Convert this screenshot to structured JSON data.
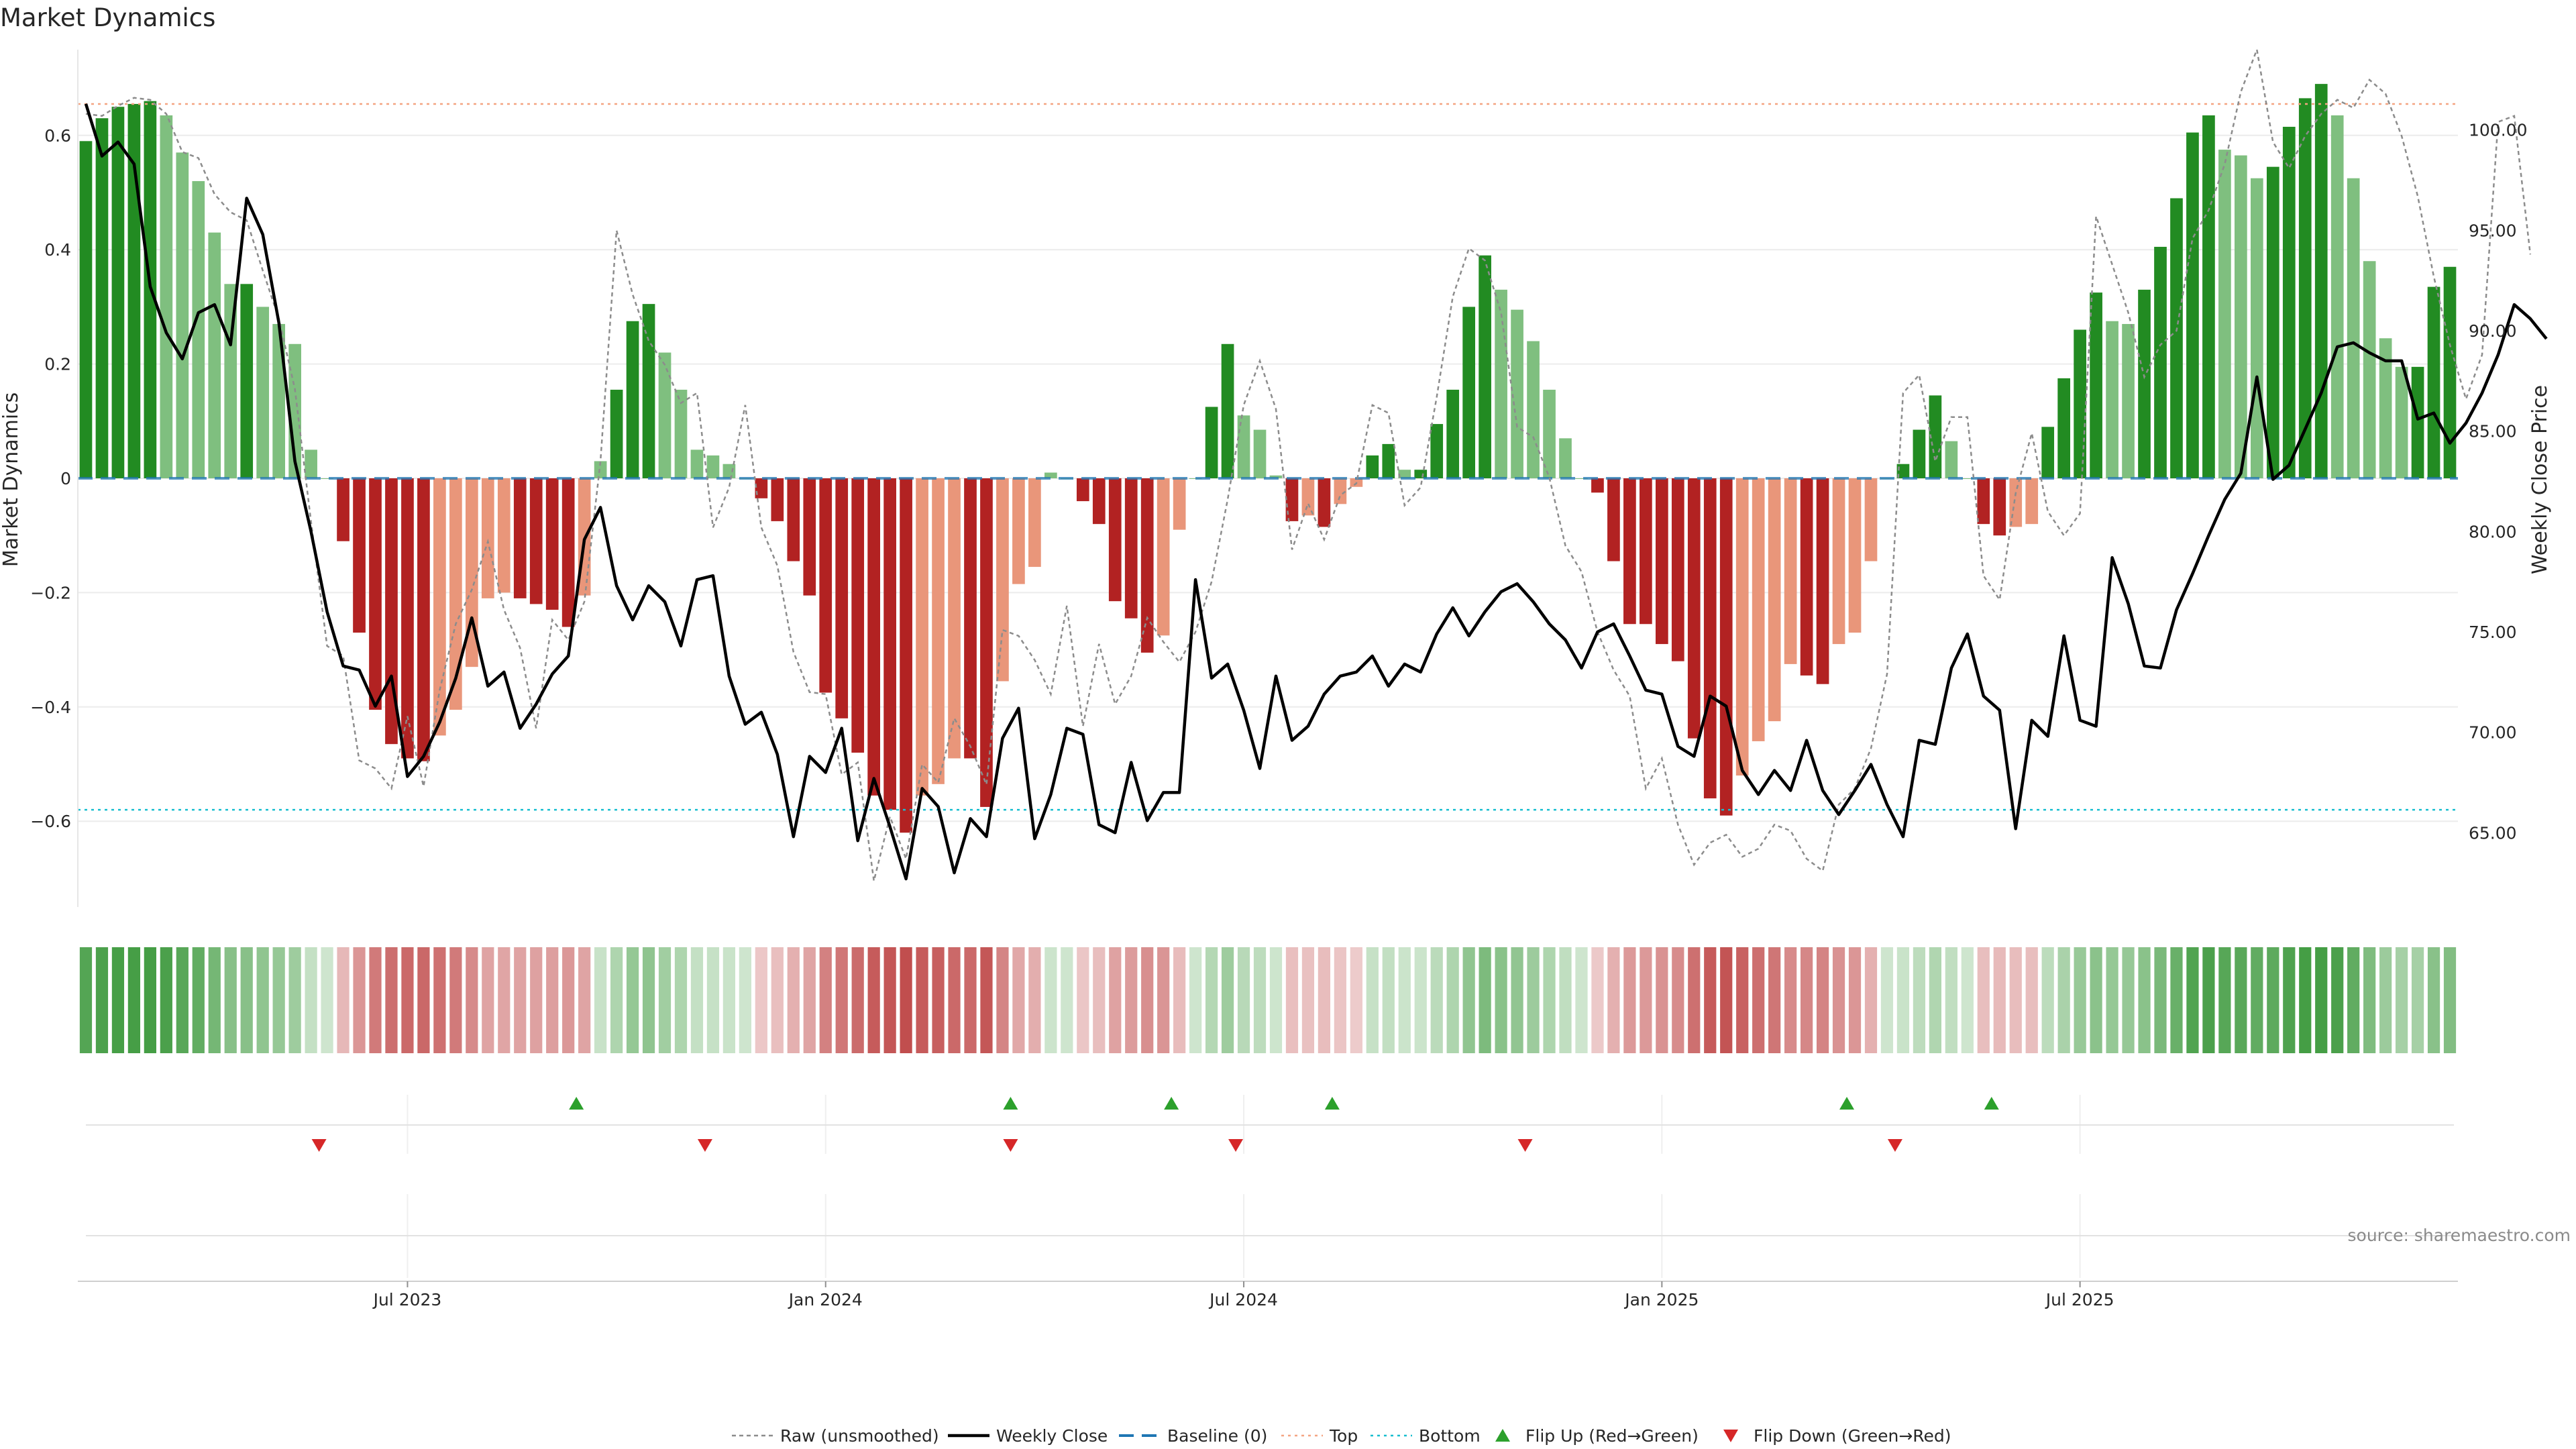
{
  "chart_data": {
    "type": "bar",
    "title": "Market Dynamics",
    "ylabel_left": "Market Dynamics",
    "ylabel_right": "Weekly Close Price",
    "source": "source: sharemaestro.com",
    "left_ylim": [
      -0.75,
      0.75
    ],
    "left_ticks": [
      0.6,
      0.4,
      0.2,
      0,
      -0.2,
      -0.4,
      -0.6
    ],
    "left_tick_labels": [
      "0.6",
      "0.4",
      "0.2",
      "0",
      "−0.2",
      "−0.4",
      "−0.6"
    ],
    "right_ylim": [
      61.3,
      104.0
    ],
    "right_ticks": [
      100,
      95,
      90,
      85,
      80,
      75,
      70,
      65
    ],
    "right_tick_labels": [
      "100.00",
      "95.00",
      "90.00",
      "85.00",
      "80.00",
      "75.00",
      "70.00",
      "65.00"
    ],
    "x_tick_weeks": [
      20.5,
      46.5,
      72.5,
      98.5,
      124.5
    ],
    "x_tick_labels": [
      "Jul 2023",
      "Jan 2024",
      "Jul 2024",
      "Jan 2025",
      "Jul 2025"
    ],
    "reference_lines": {
      "baseline": 0,
      "top": 0.655,
      "bottom": -0.58
    },
    "colors": {
      "strong_up": "#228b22",
      "weak_up": "#7fbf7f",
      "strong_down": "#b22222",
      "weak_down": "#e9967a",
      "close": "#000000",
      "raw": "#8c8c8c",
      "baseline": "#1f77b4",
      "top": "#f4a582",
      "bottom": "#17becf",
      "flip_up": "#2ca02c",
      "flip_down": "#d62728"
    },
    "series": [
      {
        "name": "Market Dynamics",
        "values": [
          0.59,
          0.63,
          0.65,
          0.655,
          0.66,
          0.635,
          0.57,
          0.52,
          0.43,
          0.34,
          0.34,
          0.3,
          0.27,
          0.235,
          0.05,
          0,
          -0.11,
          -0.27,
          -0.405,
          -0.465,
          -0.49,
          -0.495,
          -0.45,
          -0.405,
          -0.33,
          -0.21,
          -0.2,
          -0.21,
          -0.22,
          -0.23,
          -0.26,
          -0.205,
          0.03,
          0.155,
          0.275,
          0.305,
          0.22,
          0.155,
          0.05,
          0.04,
          0.025,
          0,
          -0.035,
          -0.075,
          -0.145,
          -0.205,
          -0.375,
          -0.42,
          -0.48,
          -0.555,
          -0.58,
          -0.62,
          -0.555,
          -0.535,
          -0.49,
          -0.49,
          -0.575,
          -0.355,
          -0.185,
          -0.155,
          0.01,
          0,
          -0.04,
          -0.08,
          -0.215,
          -0.245,
          -0.305,
          -0.275,
          -0.09,
          0,
          0.125,
          0.235,
          0.11,
          0.085,
          0.005,
          -0.075,
          -0.065,
          -0.085,
          -0.045,
          -0.015,
          0.04,
          0.06,
          0.015,
          0.015,
          0.095,
          0.155,
          0.3,
          0.39,
          0.33,
          0.295,
          0.24,
          0.155,
          0.07,
          0,
          -0.025,
          -0.145,
          -0.255,
          -0.255,
          -0.29,
          -0.32,
          -0.455,
          -0.56,
          -0.59,
          -0.52,
          -0.46,
          -0.425,
          -0.325,
          -0.345,
          -0.36,
          -0.29,
          -0.27,
          -0.145,
          0,
          0.025,
          0.085,
          0.145,
          0.065,
          0,
          -0.08,
          -0.1,
          -0.085,
          -0.08,
          0.09,
          0.175,
          0.26,
          0.325,
          0.275,
          0.27,
          0.33,
          0.405,
          0.49,
          0.605,
          0.635,
          0.575,
          0.565,
          0.525,
          0.545,
          0.615,
          0.665,
          0.69,
          0.635,
          0.525,
          0.38,
          0.245,
          0.195,
          0.195,
          0.335,
          0.37
        ]
      },
      {
        "name": "Weekly Close",
        "values": [
          101.3,
          98.7,
          99.4,
          98.3,
          92.2,
          89.9,
          88.6,
          90.9,
          91.3,
          89.3,
          96.6,
          94.8,
          90.4,
          83.5,
          80,
          76,
          73.3,
          73.1,
          71.3,
          72.8,
          67.8,
          68.8,
          70.5,
          72.7,
          75.7,
          72.3,
          73,
          70.2,
          71.4,
          72.9,
          73.8,
          79.6,
          81.2,
          77.3,
          75.6,
          77.3,
          76.5,
          74.3,
          77.6,
          77.8,
          72.8,
          70.4,
          71,
          68.9,
          64.8,
          68.8,
          68,
          70.2,
          64.6,
          67.7,
          65.3,
          62.7,
          67.2,
          66.3,
          63,
          65.7,
          64.8,
          69.7,
          71.2,
          64.7,
          66.9,
          70.2,
          69.9,
          65.4,
          65,
          68.5,
          65.6,
          67,
          67,
          77.6,
          72.7,
          73.4,
          71.1,
          68.2,
          72.8,
          69.6,
          70.3,
          71.9,
          72.8,
          73,
          73.8,
          72.3,
          73.4,
          73,
          74.9,
          76.2,
          74.8,
          76,
          77,
          77.4,
          76.5,
          75.4,
          74.6,
          73.2,
          75,
          75.4,
          73.8,
          72.1,
          71.9,
          69.3,
          68.8,
          71.8,
          71.3,
          68.1,
          66.9,
          68.1,
          67.1,
          69.6,
          67.1,
          65.9,
          67.1,
          68.4,
          66.4,
          64.8,
          69.6,
          69.4,
          73.2,
          74.9,
          71.8,
          71.1,
          65.2,
          70.6,
          69.8,
          74.8,
          70.6,
          70.3,
          78.7,
          76.4,
          73.3,
          73.2,
          76.1,
          77.9,
          79.8,
          81.6,
          82.9,
          87.7,
          82.6,
          83.3,
          85.1,
          86.9,
          89.2,
          89.4,
          88.9,
          88.5,
          88.5,
          85.6,
          85.9,
          84.4,
          85.4,
          86.9,
          88.8,
          91.3,
          90.6,
          89.6
        ]
      },
      {
        "name": "Raw (unsmoothed)",
        "values": [
          100.8,
          100.7,
          101.2,
          101.6,
          101.5,
          100.8,
          98.9,
          98.6,
          96.8,
          95.9,
          95.5,
          93,
          90.6,
          87.1,
          80.5,
          74.3,
          73.8,
          68.6,
          68.2,
          67.2,
          70.8,
          67.3,
          72.1,
          75.4,
          77.1,
          79.5,
          76.1,
          74.2,
          70.2,
          75.6,
          74.6,
          76.5,
          83.5,
          95,
          91.8,
          89.5,
          88.3,
          86.4,
          86.9,
          80.2,
          82.2,
          86.3,
          80.2,
          78.3,
          74,
          72,
          71.9,
          67.9,
          68.5,
          62.6,
          65.8,
          63.7,
          68.4,
          67.5,
          70.7,
          69.3,
          67.4,
          75.1,
          74.8,
          73.6,
          71.9,
          76.3,
          70.3,
          74.4,
          71.4,
          72.8,
          75.7,
          74.5,
          73.5,
          75,
          77.5,
          81.6,
          86.3,
          88.5,
          86.1,
          79.1,
          81.4,
          79.6,
          81.8,
          82.4,
          86.3,
          85.9,
          81.3,
          82.2,
          86.7,
          91.7,
          94.1,
          93.5,
          90.9,
          85.2,
          84.7,
          82.7,
          79.3,
          78,
          75,
          73.1,
          71.8,
          67.2,
          68.7,
          65.4,
          63.4,
          64.5,
          64.9,
          63.8,
          64.2,
          65.4,
          65.1,
          63.7,
          63.1,
          66.4,
          67.2,
          69.2,
          72.9,
          86.9,
          87.8,
          83.5,
          85.7,
          85.7,
          77.8,
          76.6,
          81.9,
          84.9,
          81,
          79.8,
          80.9,
          95.7,
          93.3,
          90.9,
          87.7,
          89.3,
          90,
          94.6,
          96,
          98.3,
          101.9,
          104,
          99.4,
          98.1,
          99.7,
          100.8,
          101.5,
          101.1,
          102.5,
          101.8,
          99.7,
          96.7,
          92.7,
          89.3,
          86.6,
          88.8,
          100.4,
          100.7,
          93.8
        ]
      }
    ],
    "flip_up_weeks": [
      31,
      58,
      68,
      78,
      110,
      119
    ],
    "flip_down_weeks": [
      15,
      39,
      58,
      72,
      90,
      113
    ],
    "heat_strip": "per-week tile shaded green (up) or red (down), intensity by signal strength",
    "legend": [
      "Raw (unsmoothed)",
      "Weekly Close",
      "Baseline (0)",
      "Top",
      "Bottom",
      "Flip Up (Red→Green)",
      "Flip Down (Green→Red)"
    ]
  }
}
